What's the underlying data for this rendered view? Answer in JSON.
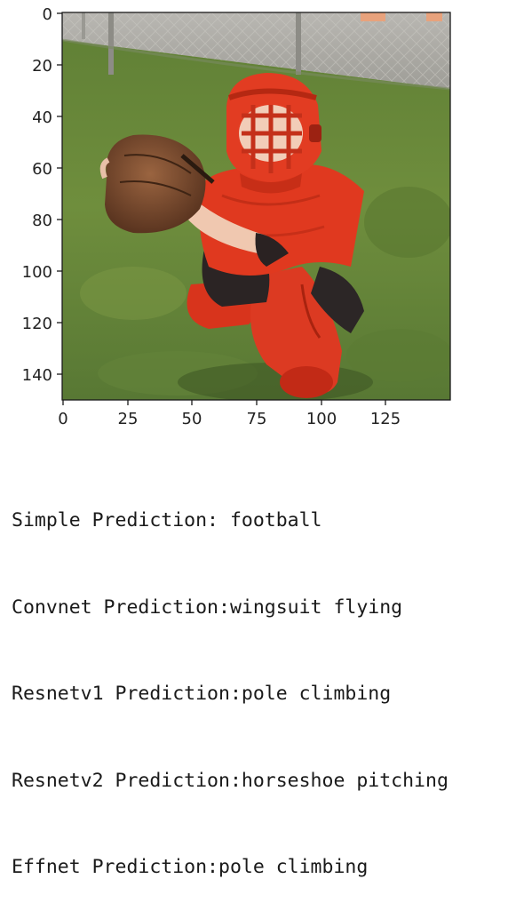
{
  "image_plot": {
    "subject": "photo of a child in red catcher's gear crouching on grass holding a baseball mitt, chain-link fence in background",
    "x_ticks": [
      "0",
      "25",
      "50",
      "75",
      "100",
      "125"
    ],
    "y_ticks": [
      "0",
      "20",
      "40",
      "60",
      "80",
      "100",
      "120",
      "140"
    ],
    "x_range": [
      0,
      150
    ],
    "y_range": [
      0,
      150
    ]
  },
  "predictions": [
    {
      "label": "Simple Prediction: ",
      "value": "football"
    },
    {
      "label": "Convnet Prediction:",
      "value": "wingsuit flying"
    },
    {
      "label": "Resnetv1 Prediction:",
      "value": "pole climbing"
    },
    {
      "label": "Resnetv2 Prediction:",
      "value": "horseshoe pitching"
    },
    {
      "label": "Effnet Prediction:",
      "value": "pole climbing"
    }
  ],
  "colors": {
    "gear": "#e23a22",
    "grass": "#6b8a3a",
    "mitt": "#7a4a2a"
  }
}
